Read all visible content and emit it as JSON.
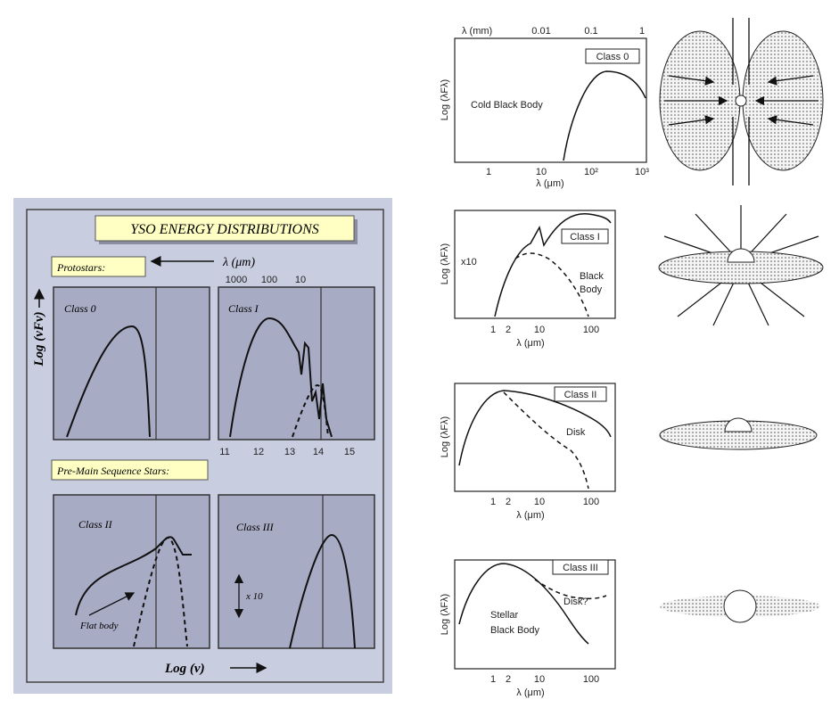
{
  "left_panel": {
    "title": "YSO ENERGY DISTRIBUTIONS",
    "protostars": "Protostars:",
    "wavelength_label": "λ (μm)",
    "top_ticks": [
      "1000",
      "100",
      "10"
    ],
    "y_label": "Log (νFν)",
    "pre_main_sequence": "Pre-Main Sequence Stars:",
    "x_ticks": [
      "11",
      "12",
      "13",
      "14",
      "15"
    ],
    "x_label": "Log (ν)",
    "panels": [
      {
        "label": "Class 0"
      },
      {
        "label": "Class I"
      },
      {
        "label": "Class II",
        "annotation": "Flat body"
      },
      {
        "label": "Class III",
        "annotation": "x 10"
      }
    ]
  },
  "right_plots": [
    {
      "top_axis_label": "λ (mm)",
      "top_ticks": [
        "0.01",
        "0.1",
        "1"
      ],
      "y_label": "Log (λFλ)",
      "class": "Class 0",
      "curve_labels": [
        "Cold Black Body"
      ],
      "x_ticks": [
        "1",
        "10",
        "10²",
        "10³"
      ],
      "x_label": "λ (μm)"
    },
    {
      "y_label": "Log (λFλ)",
      "class": "Class I",
      "curve_labels": [
        "x10",
        "Black",
        "Body"
      ],
      "x_ticks": [
        "1",
        "2",
        "10",
        "100"
      ],
      "x_label": "λ (μm)"
    },
    {
      "y_label": "Log (λFλ)",
      "class": "Class II",
      "curve_labels": [
        "Disk"
      ],
      "x_ticks": [
        "1",
        "2",
        "10",
        "100"
      ],
      "x_label": "λ (μm)"
    },
    {
      "y_label": "Log (λFλ)",
      "class": "Class III",
      "curve_labels": [
        "Stellar",
        "Black Body",
        "Disk?"
      ],
      "x_ticks": [
        "1",
        "2",
        "10",
        "100"
      ],
      "x_label": "λ (μm)"
    }
  ]
}
